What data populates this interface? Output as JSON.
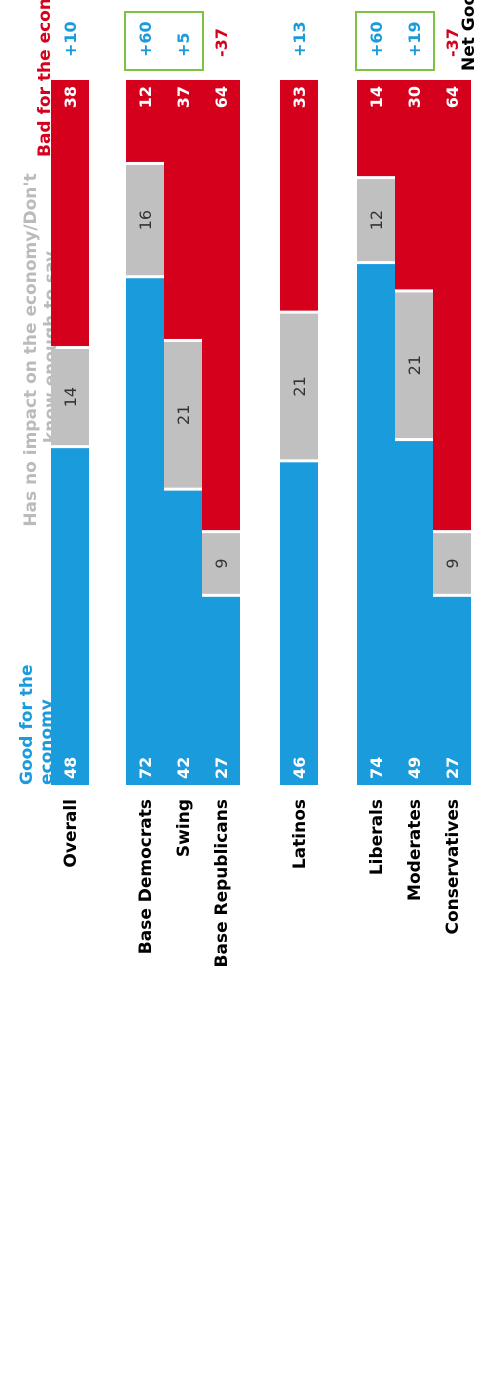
{
  "chart_data": {
    "type": "bar",
    "stacked": true,
    "orientation": "horizontal-100pct",
    "categories": [
      "Overall",
      "Base Democrats",
      "Swing",
      "Base Republicans",
      "Latinos",
      "Liberals",
      "Moderates",
      "Conservatives"
    ],
    "series": [
      {
        "name": "Good for the economy",
        "color": "#1a9bdc",
        "values": [
          48,
          72,
          42,
          27,
          46,
          74,
          49,
          27
        ]
      },
      {
        "name": "Has no impact on the economy/Don't know enough to say",
        "color": "#c0c0c0",
        "values": [
          14,
          16,
          21,
          9,
          21,
          12,
          21,
          9
        ]
      },
      {
        "name": "Bad for the economy",
        "color": "#d5001c",
        "values": [
          38,
          12,
          37,
          64,
          33,
          14,
          30,
          64
        ]
      }
    ],
    "net_header": "Net Good",
    "net_values": [
      "+10",
      "+60",
      "+5",
      "-37",
      "+13",
      "+60",
      "+19",
      "-37"
    ],
    "highlighted_rows": [
      [
        1,
        2
      ],
      [
        5,
        6
      ]
    ],
    "highlight_color": "#7dc242",
    "positive_color": "#1a9bdc",
    "negative_color": "#d5001c"
  },
  "legend": {
    "good_line1": "Good for the",
    "good_line2": "economy",
    "none_line1": "Has no impact on the economy/Don't",
    "none_line2": "know enough to say",
    "bad": "Bad for the economy"
  }
}
